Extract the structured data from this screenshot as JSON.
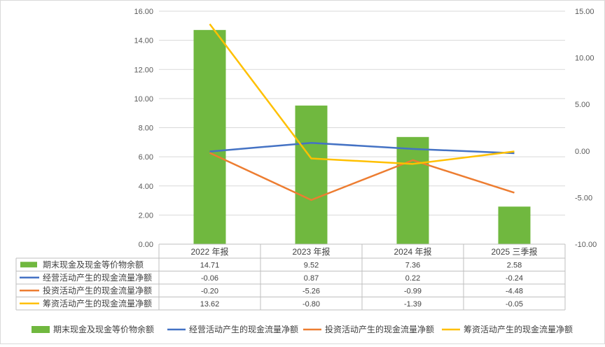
{
  "chart_data": {
    "type": "bar",
    "categories": [
      "2022 年报",
      "2023 年报",
      "2024 年报",
      "2025 三季报"
    ],
    "series": [
      {
        "name": "期末现金及现金等价物余额",
        "type": "bar",
        "axis": "left",
        "color": "#70b83f",
        "values": [
          14.71,
          9.52,
          7.36,
          2.58
        ]
      },
      {
        "name": "经营活动产生的现金流量净额",
        "type": "line",
        "axis": "right",
        "color": "#4472c4",
        "values": [
          -0.06,
          0.87,
          0.22,
          -0.24
        ]
      },
      {
        "name": "投资活动产生的现金流量净额",
        "type": "line",
        "axis": "right",
        "color": "#ed7d31",
        "values": [
          -0.2,
          -5.26,
          -0.99,
          -4.48
        ]
      },
      {
        "name": "筹资活动产生的现金流量净额",
        "type": "line",
        "axis": "right",
        "color": "#ffc000",
        "values": [
          13.62,
          -0.8,
          -1.39,
          -0.05
        ]
      }
    ],
    "table_values": [
      [
        "14.71",
        "9.52",
        "7.36",
        "2.58"
      ],
      [
        "-0.06",
        "0.87",
        "0.22",
        "-0.24"
      ],
      [
        "-0.20",
        "-5.26",
        "-0.99",
        "-4.48"
      ],
      [
        "13.62",
        "-0.80",
        "-1.39",
        "-0.05"
      ]
    ],
    "y_left": {
      "min": 0,
      "max": 16,
      "step": 2,
      "ticks": [
        "0.00",
        "2.00",
        "4.00",
        "6.00",
        "8.00",
        "10.00",
        "12.00",
        "14.00",
        "16.00"
      ]
    },
    "y_right": {
      "min": -10,
      "max": 15,
      "step": 5,
      "ticks": [
        "-10.00",
        "-5.00",
        "0.00",
        "5.00",
        "10.00",
        "15.00"
      ]
    },
    "grid": true,
    "legend_position": "bottom",
    "data_table": true
  }
}
